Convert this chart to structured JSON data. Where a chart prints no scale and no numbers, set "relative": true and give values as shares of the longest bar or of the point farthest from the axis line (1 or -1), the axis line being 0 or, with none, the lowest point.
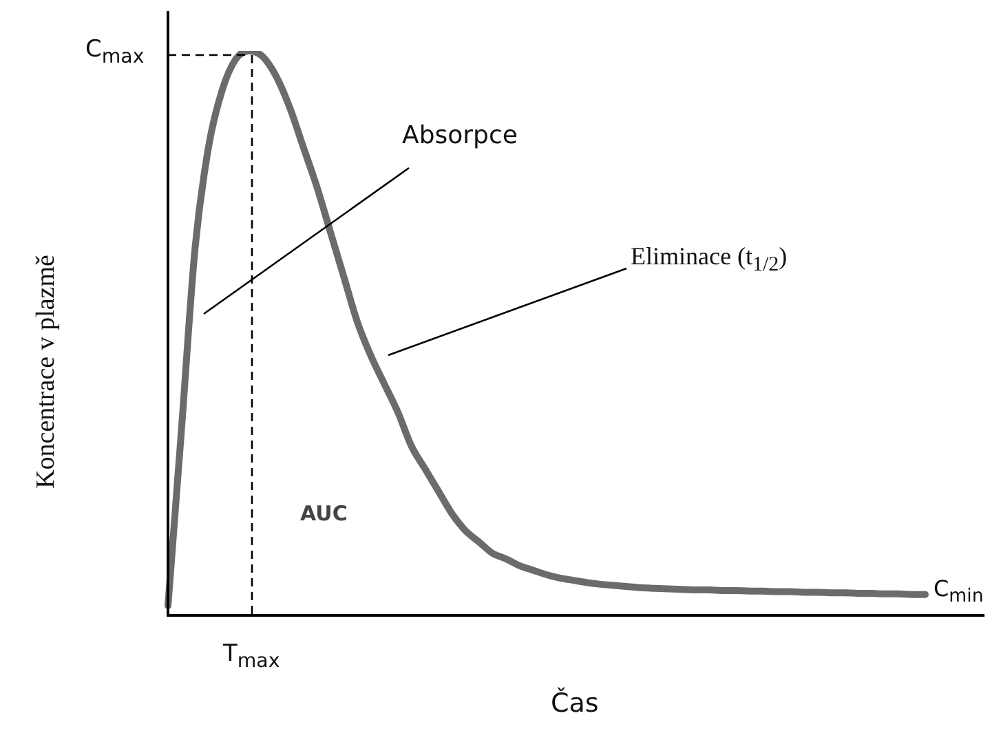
{
  "chart_data": {
    "type": "line",
    "relative": true,
    "xlabel": "Čas",
    "ylabel": "Koncentrace v plazmě",
    "color": "#6b6b6b",
    "legend": false,
    "categories": [
      null,
      null,
      null,
      null,
      null,
      null,
      null,
      null,
      null,
      null,
      null,
      null,
      null,
      null,
      null,
      null,
      null,
      null,
      null,
      null,
      null,
      null,
      null,
      null,
      null,
      null,
      null,
      null,
      null,
      null,
      null,
      null,
      null,
      null,
      null,
      null,
      null,
      null,
      null,
      null,
      null,
      null,
      null,
      null,
      null,
      null,
      null,
      null,
      null,
      null,
      null,
      null,
      null,
      null,
      null,
      null,
      null
    ],
    "values": [
      0.017,
      0.33,
      0.65,
      0.83,
      0.93,
      0.985,
      1.0,
      0.99,
      0.955,
      0.9,
      0.83,
      0.76,
      0.68,
      0.6,
      0.52,
      0.46,
      0.41,
      0.36,
      0.3,
      0.26,
      0.22,
      0.18,
      0.15,
      0.13,
      0.11,
      0.1,
      0.088,
      0.08,
      0.072,
      0.066,
      0.062,
      0.058,
      0.055,
      0.053,
      0.051,
      0.049,
      0.048,
      0.047,
      0.046,
      0.045,
      0.045,
      0.044,
      0.044,
      0.043,
      0.043,
      0.042,
      0.042,
      0.041,
      0.041,
      0.04,
      0.04,
      0.039,
      0.039,
      0.038,
      0.038,
      0.037,
      0.037
    ],
    "annotations": [
      "C$_{max}$",
      "T$_{max}$",
      "C$_{min}$",
      "Absorpce",
      "Eliminace (t$_{1/2}$)",
      "AUC"
    ]
  }
}
